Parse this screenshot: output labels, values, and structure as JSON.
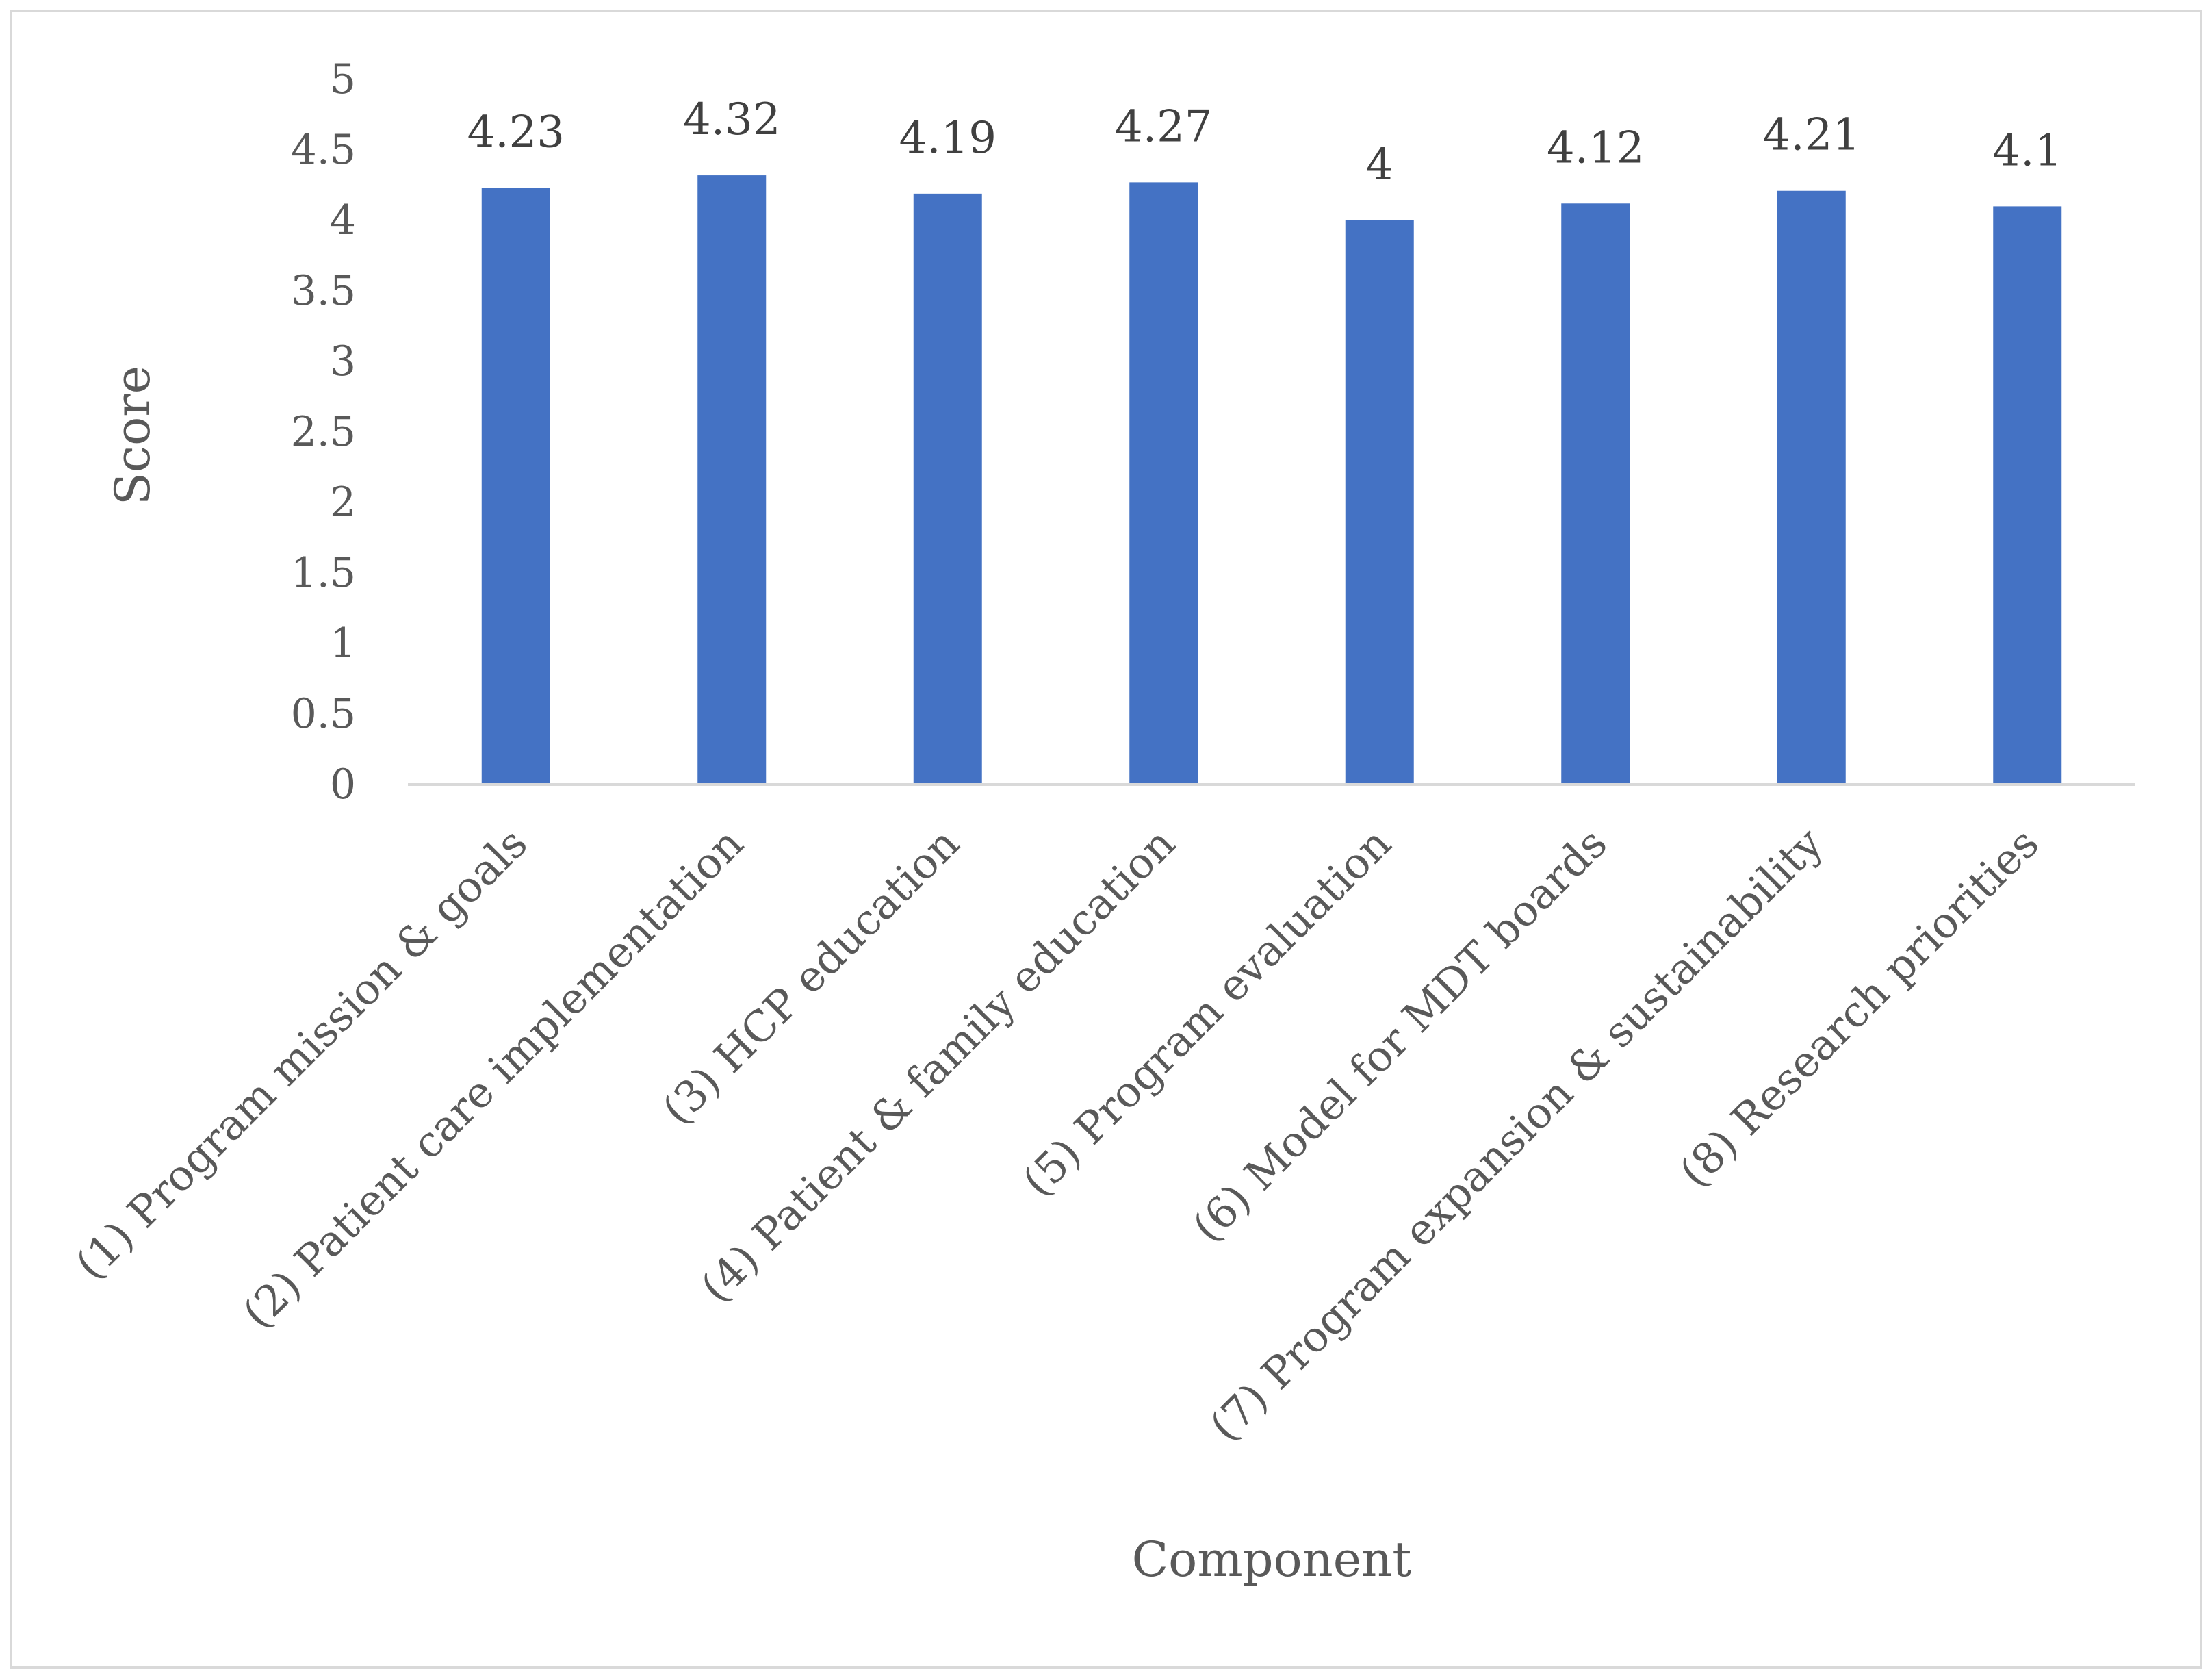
{
  "chart_data": {
    "type": "bar",
    "title": "",
    "xlabel": "Component",
    "ylabel": "Score",
    "ylim": [
      0,
      5
    ],
    "yticks": [
      "0",
      "0.5",
      "1",
      "1.5",
      "2",
      "2.5",
      "3",
      "3.5",
      "4",
      "4.5",
      "5"
    ],
    "grid": false,
    "legend": "none",
    "bar_color": "#4472C4",
    "categories": [
      "(1) Program mission & goals",
      "(2) Patient care implementation",
      "(3) HCP education",
      "(4) Patient & family education",
      "(5) Program evaluation",
      "(6) Model for MDT boards",
      "(7) Program expansion & sustainability",
      "(8) Research priorities"
    ],
    "values": [
      4.23,
      4.32,
      4.19,
      4.27,
      4,
      4.12,
      4.21,
      4.1
    ],
    "data_labels": [
      "4.23",
      "4.32",
      "4.19",
      "4.27",
      "4",
      "4.12",
      "4.21",
      "4.1"
    ]
  }
}
